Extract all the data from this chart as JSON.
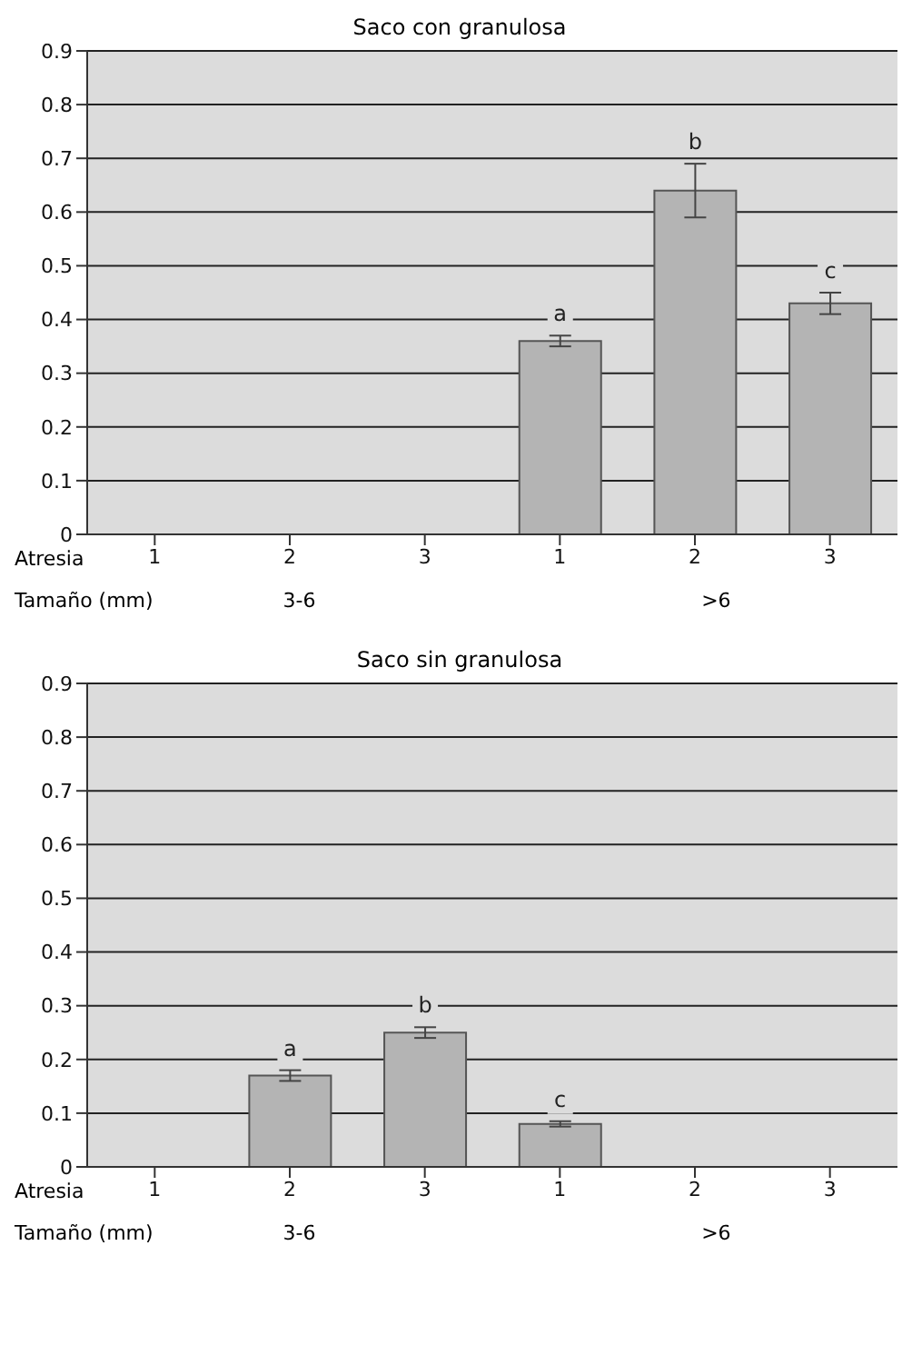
{
  "chart_data": [
    {
      "type": "bar",
      "title": "Saco con granulosa",
      "xlabel": "Atresia",
      "categories": [
        "1",
        "2",
        "3",
        "1",
        "2",
        "3"
      ],
      "values": [
        null,
        null,
        null,
        0.36,
        0.64,
        0.43
      ],
      "errors": [
        null,
        null,
        null,
        0.01,
        0.05,
        0.02
      ],
      "value_labels": [
        null,
        null,
        null,
        "a",
        "b",
        "c"
      ],
      "color": "#b4b4b4",
      "ylim": [
        0,
        0.9
      ],
      "yticks": [
        0,
        0.1,
        0.2,
        0.3,
        0.4,
        0.5,
        0.6,
        0.7,
        0.8,
        0.9
      ],
      "grid": "y",
      "annotations": [
        "Tamaño (mm)",
        "3-6",
        ">6"
      ]
    },
    {
      "type": "bar",
      "title": "Saco sin granulosa",
      "xlabel": "Atresia",
      "categories": [
        "1",
        "2",
        "3",
        "1",
        "2",
        "3"
      ],
      "values": [
        null,
        0.17,
        0.25,
        0.08,
        null,
        null
      ],
      "errors": [
        null,
        0.01,
        0.01,
        0.005,
        null,
        null
      ],
      "value_labels": [
        null,
        "a",
        "b",
        "c",
        null,
        null
      ],
      "color": "#b4b4b4",
      "ylim": [
        0,
        0.9
      ],
      "yticks": [
        0,
        0.1,
        0.2,
        0.3,
        0.4,
        0.5,
        0.6,
        0.7,
        0.8,
        0.9
      ],
      "grid": "y",
      "annotations": [
        "Tamaño (mm)",
        "3-6",
        ">6"
      ]
    }
  ]
}
